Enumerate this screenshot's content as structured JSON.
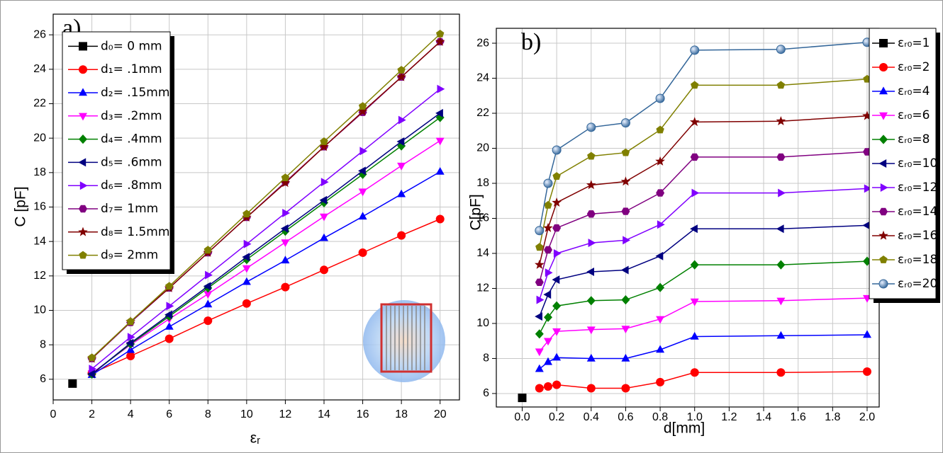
{
  "chart_data": [
    {
      "type": "line",
      "title": "a)",
      "xlabel": "εᵣ",
      "ylabel": "C [pF]",
      "xlim": [
        0,
        21
      ],
      "ylim": [
        4.8,
        27.2
      ],
      "xticks": [
        0,
        2,
        4,
        6,
        8,
        10,
        12,
        14,
        16,
        18,
        20
      ],
      "yticks": [
        6,
        8,
        10,
        12,
        14,
        16,
        18,
        20,
        22,
        24,
        26
      ],
      "grid": true,
      "legend": "upper left",
      "x": [
        2,
        4,
        6,
        8,
        10,
        12,
        14,
        16,
        18,
        20
      ],
      "series": [
        {
          "name": "d₀= 0 mm",
          "color": "#000000",
          "marker": "square",
          "x": [
            1
          ],
          "values": [
            5.75
          ]
        },
        {
          "name": "d₁= .1mm",
          "color": "#ff0000",
          "marker": "circle",
          "values": [
            6.35,
            7.35,
            8.35,
            9.4,
            10.4,
            11.35,
            12.35,
            13.35,
            14.35,
            15.3
          ]
        },
        {
          "name": "d₂= .15mm",
          "color": "#0000ff",
          "marker": "triangle-up",
          "values": [
            6.25,
            7.7,
            9.05,
            10.35,
            11.65,
            12.9,
            14.2,
            15.45,
            16.75,
            18.05
          ]
        },
        {
          "name": "d₃= .2mm",
          "color": "#ff00ff",
          "marker": "triangle-down",
          "values": [
            6.35,
            8.0,
            9.5,
            10.95,
            12.45,
            13.95,
            15.45,
            16.9,
            18.4,
            19.85
          ]
        },
        {
          "name": "d₄= .4mm",
          "color": "#008000",
          "marker": "diamond",
          "values": [
            6.3,
            8.05,
            9.65,
            11.3,
            12.95,
            14.6,
            16.25,
            17.9,
            19.55,
            21.2
          ]
        },
        {
          "name": "d₅= .6mm",
          "color": "#000080",
          "marker": "triangle-left",
          "values": [
            6.3,
            8.1,
            9.75,
            11.4,
            13.1,
            14.75,
            16.4,
            18.1,
            19.8,
            21.45
          ]
        },
        {
          "name": "d₆= .8mm",
          "color": "#8000ff",
          "marker": "triangle-right",
          "values": [
            6.6,
            8.45,
            10.25,
            12.05,
            13.85,
            15.65,
            17.45,
            19.25,
            21.05,
            22.85
          ]
        },
        {
          "name": "d₇= 1mm",
          "color": "#800080",
          "marker": "hexagon",
          "values": [
            7.2,
            9.3,
            11.3,
            13.35,
            15.4,
            17.45,
            19.5,
            21.5,
            23.55,
            25.6
          ]
        },
        {
          "name": "d₈= 1.5mm",
          "color": "#800000",
          "marker": "star",
          "values": [
            7.2,
            9.35,
            11.3,
            13.35,
            15.4,
            17.4,
            19.5,
            21.55,
            23.55,
            25.6
          ]
        },
        {
          "name": "d₉= 2mm",
          "color": "#808000",
          "marker": "pentagon",
          "values": [
            7.25,
            9.35,
            11.4,
            13.5,
            15.6,
            17.7,
            19.8,
            21.85,
            23.95,
            26.05
          ]
        }
      ]
    },
    {
      "type": "line",
      "title": "b)",
      "xlabel": "d[mm]",
      "ylabel": "C[pF]",
      "xlim": [
        -0.15,
        2.07
      ],
      "ylim": [
        5.23,
        26.85
      ],
      "xticks": [
        {
          "value": 0,
          "label": "0.0"
        },
        0.2,
        0.4,
        0.6,
        0.8,
        {
          "value": 1,
          "label": "1.0"
        },
        1.2,
        1.4,
        1.6,
        1.8,
        {
          "value": 2,
          "label": "2.0"
        }
      ],
      "yticks": [
        6,
        8,
        10,
        12,
        14,
        16,
        18,
        20,
        22,
        24,
        26
      ],
      "grid": true,
      "legend": "upper right",
      "x": [
        0.1,
        0.15,
        0.2,
        0.4,
        0.6,
        0.8,
        1.0,
        1.5,
        2.0
      ],
      "series": [
        {
          "name": "εᵣ₀=1",
          "color": "#000000",
          "marker": "square",
          "x": [
            0
          ],
          "values": [
            5.75
          ]
        },
        {
          "name": "εᵣ₀=2",
          "color": "#ff0000",
          "marker": "circle",
          "values": [
            6.3,
            6.4,
            6.5,
            6.3,
            6.3,
            6.65,
            7.2,
            7.2,
            7.25
          ]
        },
        {
          "name": "εᵣ₀=4",
          "color": "#0000ff",
          "marker": "triangle-up",
          "values": [
            7.4,
            7.8,
            8.05,
            8.0,
            8.0,
            8.5,
            9.25,
            9.3,
            9.35
          ]
        },
        {
          "name": "εᵣ₀=6",
          "color": "#ff00ff",
          "marker": "triangle-down",
          "values": [
            8.4,
            9.0,
            9.55,
            9.65,
            9.7,
            10.25,
            11.25,
            11.3,
            11.45
          ]
        },
        {
          "name": "εᵣ₀=8",
          "color": "#008000",
          "marker": "diamond",
          "values": [
            9.4,
            10.35,
            11.0,
            11.3,
            11.35,
            12.05,
            13.35,
            13.35,
            13.55
          ]
        },
        {
          "name": "εᵣ₀=10",
          "color": "#000080",
          "marker": "triangle-left",
          "values": [
            10.4,
            11.65,
            12.5,
            12.95,
            13.05,
            13.85,
            15.4,
            15.4,
            15.6
          ]
        },
        {
          "name": "εᵣ₀=12",
          "color": "#8000ff",
          "marker": "triangle-right",
          "values": [
            11.35,
            12.9,
            14.0,
            14.6,
            14.75,
            15.65,
            17.45,
            17.45,
            17.7
          ]
        },
        {
          "name": "εᵣ₀=14",
          "color": "#800080",
          "marker": "hexagon",
          "values": [
            12.35,
            14.2,
            15.45,
            16.25,
            16.4,
            17.45,
            19.5,
            19.5,
            19.8
          ]
        },
        {
          "name": "εᵣ₀=16",
          "color": "#800000",
          "marker": "star",
          "values": [
            13.35,
            15.45,
            16.9,
            17.9,
            18.1,
            19.25,
            21.5,
            21.55,
            21.85
          ]
        },
        {
          "name": "εᵣ₀=18",
          "color": "#808000",
          "marker": "pentagon",
          "values": [
            14.35,
            16.75,
            18.4,
            19.55,
            19.75,
            21.05,
            23.6,
            23.6,
            23.95
          ]
        },
        {
          "name": "εᵣ₀=20",
          "color": "#336699",
          "marker": "sphere",
          "values": [
            15.3,
            18.0,
            19.9,
            21.2,
            21.45,
            22.85,
            25.6,
            25.65,
            26.05
          ]
        }
      ]
    }
  ]
}
